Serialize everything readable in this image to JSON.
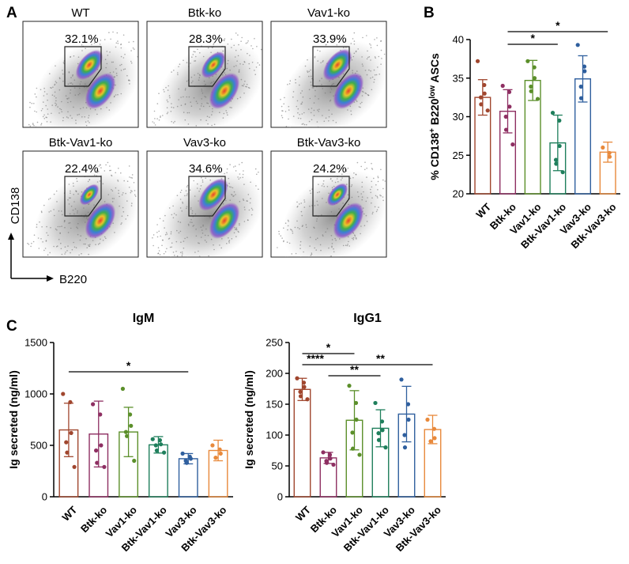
{
  "panels": {
    "a": "A",
    "b": "B",
    "c": "C"
  },
  "flow": {
    "plots": [
      {
        "title": "WT",
        "percent": "32.1%",
        "gate_value": 32.1
      },
      {
        "title": "Btk-ko",
        "percent": "28.3%",
        "gate_value": 28.3
      },
      {
        "title": "Vav1-ko",
        "percent": "33.9%",
        "gate_value": 33.9
      },
      {
        "title": "Btk-Vav1-ko",
        "percent": "22.4%",
        "gate_value": 22.4
      },
      {
        "title": "Vav3-ko",
        "percent": "34.6%",
        "gate_value": 34.6
      },
      {
        "title": "Btk-Vav3-ko",
        "percent": "24.2%",
        "gate_value": 24.2
      }
    ],
    "y_axis_label": "CD138",
    "x_axis_label": "B220"
  },
  "colors": {
    "WT": "#a0462e",
    "Btk-ko": "#8e2f62",
    "Vav1-ko": "#5b8f2a",
    "Btk-Vav1-ko": "#1f7f5c",
    "Vav3-ko": "#2f5f9e",
    "Btk-Vav3-ko": "#e8893b"
  },
  "chart_data": [
    {
      "id": "B",
      "type": "bar",
      "title": "",
      "xlabel": "",
      "ylabel": "% CD138+ B220low ASCs",
      "ylim": [
        20,
        40
      ],
      "yticks": [
        20,
        25,
        30,
        35,
        40
      ],
      "categories": [
        "WT",
        "Btk-ko",
        "Vav1-ko",
        "Btk-Vav1-ko",
        "Vav3-ko",
        "Btk-Vav3-ko"
      ],
      "values": [
        32.5,
        30.7,
        34.7,
        26.6,
        34.9,
        25.4
      ],
      "errors": [
        2.3,
        2.8,
        2.6,
        3.6,
        3.0,
        1.3
      ],
      "points": [
        [
          37.2,
          34.1,
          33.0,
          32.5,
          31.6,
          30.8
        ],
        [
          34.0,
          33.2,
          31.3,
          30.0,
          28.3,
          26.4
        ],
        [
          37.2,
          36.4,
          35.0,
          33.9,
          33.3,
          32.3
        ],
        [
          30.5,
          29.5,
          26.2,
          24.4,
          23.9,
          22.8
        ],
        [
          39.3,
          36.5,
          35.9,
          33.9,
          32.4
        ],
        [
          26.0,
          25.3,
          24.8
        ]
      ],
      "significance": [
        {
          "from": 1,
          "to": 3,
          "label": "*"
        },
        {
          "from": 1,
          "to": 5,
          "label": "*"
        }
      ]
    },
    {
      "id": "C-IgM",
      "type": "bar",
      "title": "IgM",
      "xlabel": "",
      "ylabel": "Ig secreted (ng/ml)",
      "ylim": [
        0,
        1500
      ],
      "yticks": [
        0,
        500,
        1000,
        1500
      ],
      "categories": [
        "WT",
        "Btk-ko",
        "Vav1-ko",
        "Btk-Vav1-ko",
        "Vav3-ko",
        "Btk-Vav3-ko"
      ],
      "values": [
        650,
        610,
        630,
        505,
        370,
        450
      ],
      "errors": [
        260,
        320,
        240,
        80,
        50,
        100
      ],
      "points": [
        [
          1000,
          920,
          620,
          530,
          430,
          290
        ],
        [
          900,
          800,
          500,
          450,
          330,
          290
        ],
        [
          1050,
          800,
          690,
          630,
          590,
          350
        ],
        [
          560,
          550,
          510,
          500,
          450,
          430
        ],
        [
          420,
          390,
          370,
          350,
          330
        ],
        [
          500,
          460,
          420,
          380
        ]
      ],
      "significance": [
        {
          "from": 0,
          "to": 4,
          "label": "*"
        }
      ]
    },
    {
      "id": "C-IgG1",
      "type": "bar",
      "title": "IgG1",
      "xlabel": "",
      "ylabel": "Ig secreted (ng/ml)",
      "ylim": [
        0,
        250
      ],
      "yticks": [
        0,
        50,
        100,
        150,
        200,
        250
      ],
      "categories": [
        "WT",
        "Btk-ko",
        "Vav1-ko",
        "Btk-Vav1-ko",
        "Vav3-ko",
        "Btk-Vav3-ko"
      ],
      "values": [
        174,
        63,
        124,
        111,
        134,
        109
      ],
      "errors": [
        18,
        9,
        48,
        30,
        45,
        23
      ],
      "points": [
        [
          192,
          185,
          178,
          170,
          163,
          158
        ],
        [
          72,
          68,
          62,
          58,
          55,
          52
        ],
        [
          180,
          152,
          125,
          104,
          78,
          68
        ],
        [
          152,
          122,
          108,
          103,
          92,
          80
        ],
        [
          190,
          150,
          125,
          100,
          80
        ],
        [
          125,
          110,
          95,
          90
        ]
      ],
      "significance": [
        {
          "from": 0,
          "to": 2,
          "label": "*"
        },
        {
          "from": 0,
          "to": 1,
          "label": "****"
        },
        {
          "from": 1,
          "to": 3,
          "label": "**"
        },
        {
          "from": 1,
          "to": 5,
          "label": "**"
        }
      ]
    }
  ]
}
